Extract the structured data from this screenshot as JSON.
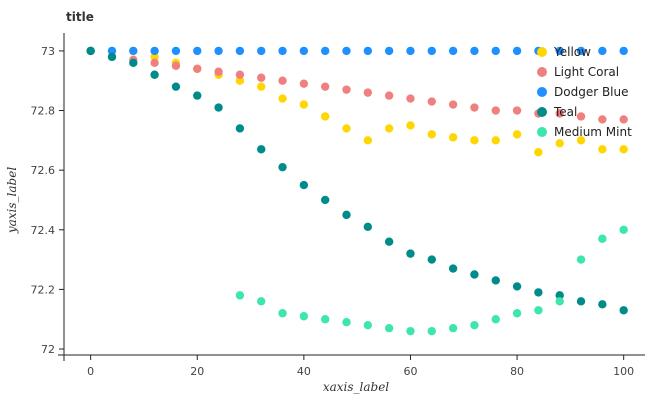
{
  "chart_data": {
    "type": "scatter",
    "title": "title",
    "xlabel": "xaxis_label",
    "ylabel": "yaxis_label",
    "xlim": [
      -5,
      104
    ],
    "ylim": [
      71.98,
      73.06
    ],
    "xticks": [
      0,
      20,
      40,
      60,
      80,
      100
    ],
    "yticks": [
      72.0,
      72.2,
      72.4,
      72.6,
      72.8,
      73.0
    ],
    "xtick_labels": [
      "0",
      "20",
      "40",
      "60",
      "80",
      "100"
    ],
    "ytick_labels": [
      "72",
      "72.2",
      "72.4",
      "72.6",
      "72.8",
      "73"
    ],
    "grid": false,
    "legend_position": "top-right",
    "x": [
      0,
      4,
      8,
      12,
      16,
      20,
      24,
      28,
      32,
      36,
      40,
      44,
      48,
      52,
      56,
      60,
      64,
      68,
      72,
      76,
      80,
      84,
      88,
      92,
      96,
      100
    ],
    "series": [
      {
        "name": "Yellow",
        "color": "#ffd700",
        "values": [
          73.0,
          73.0,
          73.0,
          72.98,
          72.96,
          72.94,
          72.92,
          72.9,
          72.88,
          72.84,
          72.82,
          72.78,
          72.74,
          72.7,
          72.74,
          72.75,
          72.72,
          72.71,
          72.7,
          72.7,
          72.72,
          72.66,
          72.69,
          72.7,
          72.67,
          72.67
        ]
      },
      {
        "name": "Light Coral",
        "color": "#f08080",
        "values": [
          73.0,
          72.98,
          72.97,
          72.96,
          72.95,
          72.94,
          72.93,
          72.92,
          72.91,
          72.9,
          72.89,
          72.88,
          72.87,
          72.86,
          72.85,
          72.84,
          72.83,
          72.82,
          72.81,
          72.8,
          72.8,
          72.79,
          72.79,
          72.78,
          72.77,
          72.77
        ]
      },
      {
        "name": "Dodger Blue",
        "color": "#1e90ff",
        "values": [
          73.0,
          73.0,
          73.0,
          73.0,
          73.0,
          73.0,
          73.0,
          73.0,
          73.0,
          73.0,
          73.0,
          73.0,
          73.0,
          73.0,
          73.0,
          73.0,
          73.0,
          73.0,
          73.0,
          73.0,
          73.0,
          73.0,
          73.0,
          73.0,
          73.0,
          73.0
        ]
      },
      {
        "name": "Teal",
        "color": "#008b8b",
        "values": [
          73.0,
          72.98,
          72.96,
          72.92,
          72.88,
          72.85,
          72.81,
          72.74,
          72.67,
          72.61,
          72.55,
          72.5,
          72.45,
          72.41,
          72.36,
          72.32,
          72.3,
          72.27,
          72.25,
          72.23,
          72.21,
          72.19,
          72.18,
          72.16,
          72.15,
          72.13
        ]
      },
      {
        "name": "Medium Mint",
        "color": "#3ce6ac",
        "values": [
          null,
          null,
          null,
          null,
          null,
          null,
          null,
          72.18,
          72.16,
          72.12,
          72.11,
          72.1,
          72.09,
          72.08,
          72.07,
          72.06,
          72.06,
          72.07,
          72.08,
          72.1,
          72.12,
          72.13,
          72.16,
          72.3,
          72.37,
          72.4
        ]
      }
    ]
  }
}
